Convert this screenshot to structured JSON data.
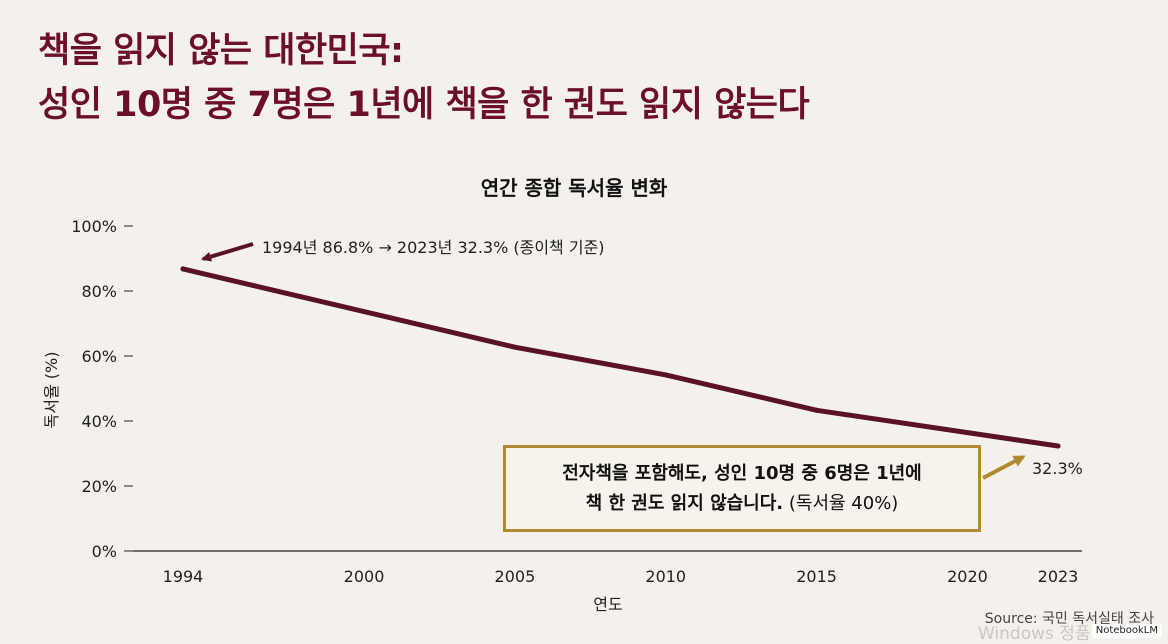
{
  "headline": {
    "line1": "책을 읽지 않는 대한민국:",
    "line2": "성인 10명 중 7명은 1년에 책을 한 권도 읽지 않는다"
  },
  "colors": {
    "accent": "#6b0f2a",
    "gold": "#b08a30",
    "line": "#5a1326"
  },
  "chart_data": {
    "type": "line",
    "title": "연간 종합 독서율 변화",
    "xlabel": "연도",
    "ylabel": "독서율 (%)",
    "x": [
      1994,
      2005,
      2010,
      2015,
      2023
    ],
    "values": [
      86.8,
      62.7,
      54.2,
      43.3,
      32.3
    ],
    "x_ticks": [
      "1994",
      "2000",
      "2005",
      "2010",
      "2015",
      "2020",
      "2023"
    ],
    "y_ticks": [
      "0%",
      "20%",
      "40%",
      "60%",
      "80%",
      "100%"
    ],
    "ylim": [
      0,
      100
    ],
    "end_label": "32.3%",
    "annotation_top": "1994년 86.8% → 2023년 32.3% (종이책 기준)",
    "callout": {
      "line1": "전자책을 포함해도, 성인 10명 중 6명은 1년에",
      "line2_bold": "책 한 권도 읽지 않습니다.",
      "line2_rest": " (독서율 40%)"
    }
  },
  "source": "Source: 국민 독서실태 조사",
  "badge": "NotebookLM",
  "watermark": "Windows 정품"
}
